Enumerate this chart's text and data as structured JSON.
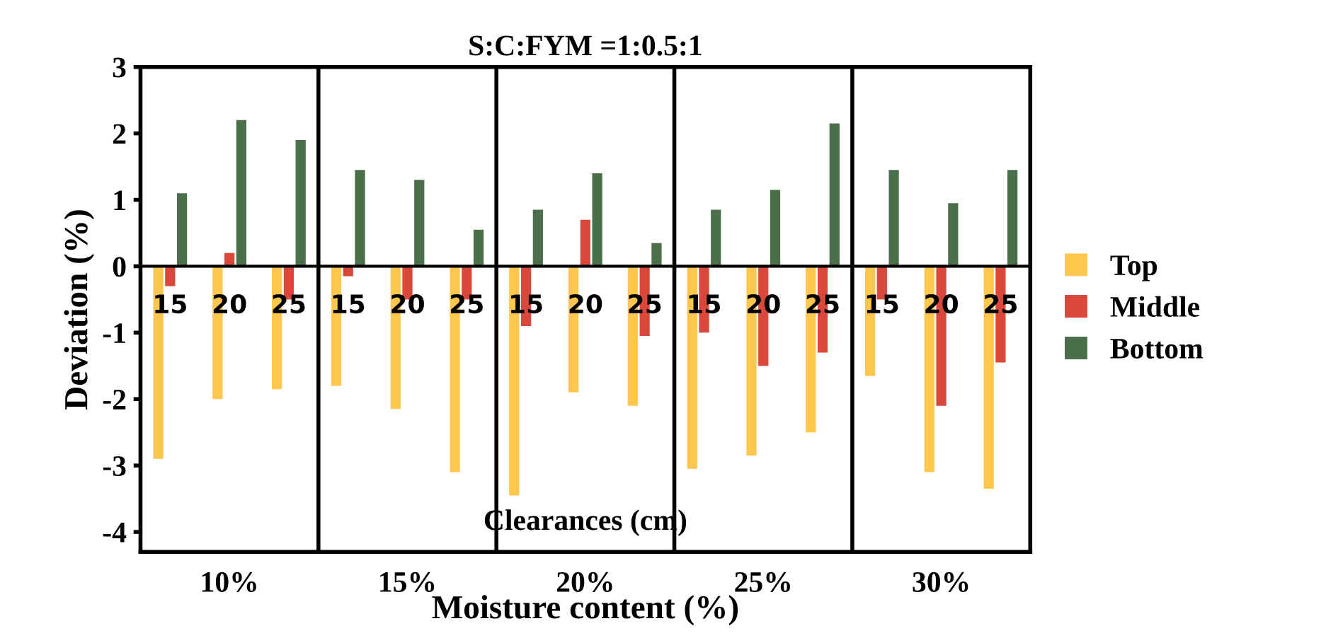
{
  "chart_data": {
    "type": "bar",
    "title": "S:C:FYM =1:0.5:1",
    "xlabel": "Moisture content (%)",
    "ylabel": "Deviation (%)",
    "categories": [
      "15",
      "20",
      "25",
      "15",
      "20",
      "25",
      "15",
      "20",
      "25",
      "15",
      "20",
      "25",
      "15",
      "20",
      "25"
    ],
    "series": [
      {
        "name": "Top",
        "color": "#fdc64c",
        "values": [
          -2.9,
          -2.0,
          -1.85,
          -1.8,
          -2.15,
          -3.1,
          -3.45,
          -1.9,
          -2.1,
          -3.05,
          -2.85,
          -2.5,
          -1.65,
          -3.1,
          -3.35
        ]
      },
      {
        "name": "Middle",
        "color": "#d9483b",
        "values": [
          -0.3,
          0.2,
          -0.5,
          -0.15,
          -0.5,
          -0.5,
          -0.9,
          0.7,
          -1.05,
          -1.0,
          -1.5,
          -1.3,
          -0.5,
          -2.1,
          -1.45
        ]
      },
      {
        "name": "Bottom",
        "color": "#4b6e4b",
        "values": [
          1.1,
          2.2,
          1.9,
          1.45,
          1.3,
          0.55,
          0.85,
          1.4,
          0.35,
          0.85,
          1.15,
          2.15,
          1.45,
          0.95,
          1.45
        ]
      }
    ],
    "annotations": [
      "10%",
      "15%",
      "20%",
      "25%",
      "30%",
      "Clearances (cm)"
    ],
    "ylim": [
      -4.3,
      3
    ],
    "yticks": [
      -4,
      -3,
      -2,
      -1,
      0,
      1,
      2,
      3
    ],
    "legend": "right",
    "grid": false
  }
}
